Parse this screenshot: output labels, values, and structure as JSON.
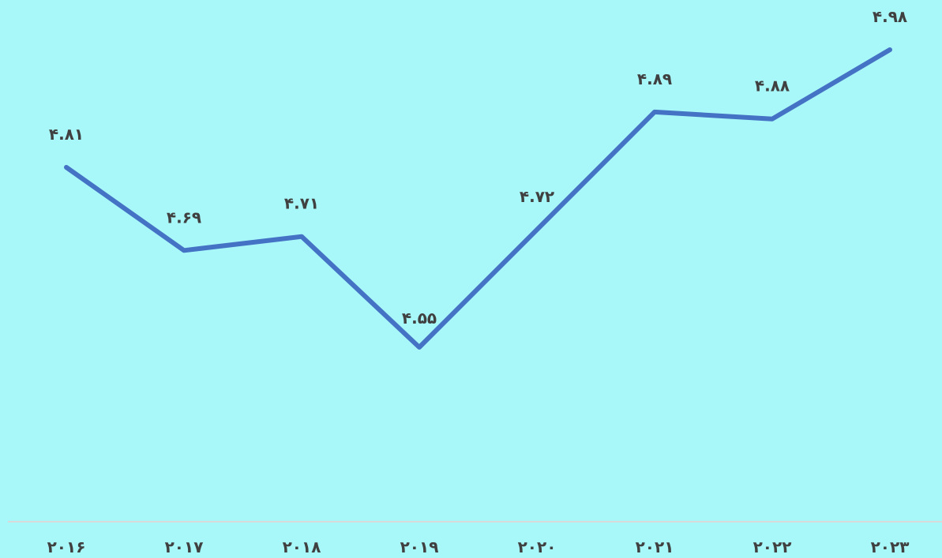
{
  "colors": {
    "background": "#a8f7f9",
    "line": "#4472c4",
    "axis": "#d9d9d9",
    "text": "#404040"
  },
  "chart_data": {
    "type": "line",
    "categories": [
      "۲۰۱۶",
      "۲۰۱۷",
      "۲۰۱۸",
      "۲۰۱۹",
      "۲۰۲۰",
      "۲۰۲۱",
      "۲۰۲۲",
      "۲۰۲۳"
    ],
    "series": [
      {
        "values": [
          4.81,
          4.69,
          4.71,
          4.55,
          4.72,
          4.89,
          4.88,
          4.98
        ],
        "data_labels": [
          "۴.۸۱",
          "۴.۶۹",
          "۴.۷۱",
          "۴.۵۵",
          "۴.۷۲",
          "۴.۸۹",
          "۴.۸۸",
          "۴.۹۸"
        ]
      }
    ],
    "title": "",
    "xlabel": "",
    "ylabel": "",
    "ylim": [
      4.0,
      5.0
    ],
    "grid": false,
    "legend": "none"
  }
}
